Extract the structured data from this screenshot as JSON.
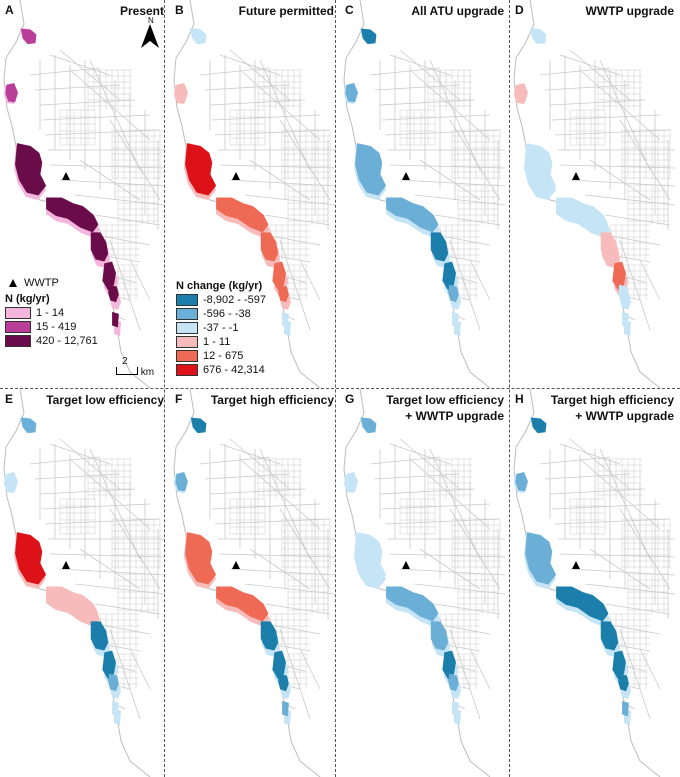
{
  "colors": {
    "road": "#c9c9c9",
    "river": "#bdbdbd",
    "present": [
      "#f4b6dc",
      "#b83e98",
      "#6a0c4a"
    ],
    "change": [
      "#1b7eab",
      "#6bafd6",
      "#c5e4f5",
      "#f7bbbb",
      "#ee6a55",
      "#dd1218"
    ]
  },
  "panels": [
    {
      "label": "A",
      "title": [
        "Present"
      ],
      "mode": "present",
      "zones": {
        "z1": 1,
        "z2": 1,
        "z3": 2,
        "z4": 2,
        "z5": 2,
        "z6": 2,
        "z7": 2,
        "z8": 2
      }
    },
    {
      "label": "B",
      "title": [
        "Future permitted"
      ],
      "mode": "change",
      "zones": {
        "z1": 2,
        "z2": 3,
        "z3": 5,
        "z4": 4,
        "z5": 4,
        "z6": 4,
        "z7": 4,
        "z8": 2
      }
    },
    {
      "label": "C",
      "title": [
        "All ATU upgrade"
      ],
      "mode": "change",
      "zones": {
        "z1": 0,
        "z2": 1,
        "z3": 1,
        "z4": 1,
        "z5": 0,
        "z6": 0,
        "z7": 1,
        "z8": 2
      }
    },
    {
      "label": "D",
      "title": [
        "WWTP upgrade"
      ],
      "mode": "change",
      "zones": {
        "z1": 2,
        "z2": 3,
        "z3": 2,
        "z4": 2,
        "z5": 3,
        "z6": 4,
        "z7": 2,
        "z8": 2
      }
    },
    {
      "label": "E",
      "title": [
        "Target low efficiency"
      ],
      "mode": "change",
      "zones": {
        "z1": 1,
        "z2": 2,
        "z3": 5,
        "z4": 3,
        "z5": 0,
        "z6": 0,
        "z7": 1,
        "z8": 2
      }
    },
    {
      "label": "F",
      "title": [
        "Target high efficiency"
      ],
      "mode": "change",
      "zones": {
        "z1": 0,
        "z2": 1,
        "z3": 4,
        "z4": 4,
        "z5": 0,
        "z6": 0,
        "z7": 0,
        "z8": 1
      }
    },
    {
      "label": "G",
      "title": [
        "Target low efficiency",
        "+ WWTP upgrade"
      ],
      "mode": "change",
      "zones": {
        "z1": 1,
        "z2": 2,
        "z3": 2,
        "z4": 1,
        "z5": 1,
        "z6": 0,
        "z7": 1,
        "z8": 2
      }
    },
    {
      "label": "H",
      "title": [
        "Target high efficiency",
        "+ WWTP upgrade"
      ],
      "mode": "change",
      "zones": {
        "z1": 0,
        "z2": 1,
        "z3": 1,
        "z4": 0,
        "z5": 0,
        "z6": 0,
        "z7": 0,
        "z8": 1
      }
    }
  ],
  "legend_present": {
    "marker_label": "WWTP",
    "title": "N (kg/yr)",
    "items": [
      "1 - 14",
      "15 - 419",
      "420 - 12,761"
    ]
  },
  "legend_change": {
    "title": "N change (kg/yr)",
    "items": [
      "-8,902 - -597",
      "-596 - -38",
      "-37 - -1",
      "1 - 11",
      "12 - 675",
      "676 - 42,314"
    ]
  },
  "north_label": "N",
  "scale": {
    "value": "2",
    "unit": "km"
  }
}
